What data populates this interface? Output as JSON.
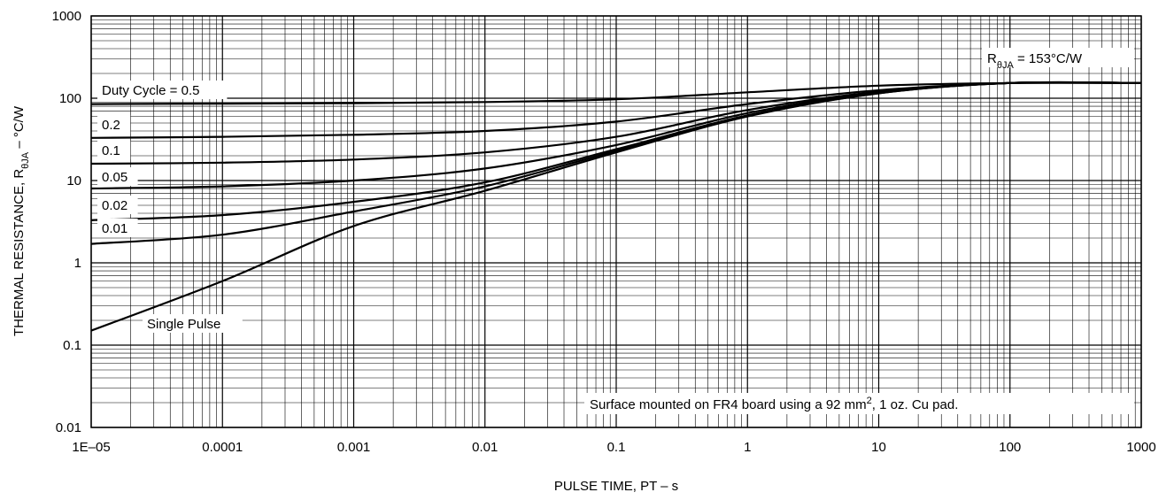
{
  "chart_data": {
    "type": "line",
    "x_scale": "log",
    "y_scale": "log",
    "xlim": [
      1e-05,
      1000
    ],
    "ylim": [
      0.01,
      1000
    ],
    "grid": true,
    "xlabel": "PULSE TIME, PT – s",
    "ylabel": {
      "prefix": "THERMAL RESISTANCE, R",
      "subscript": "θJA",
      "suffix": " – °C/W"
    },
    "x_tick_labels": [
      "1E–05",
      "0.0001",
      "0.001",
      "0.01",
      "0.1",
      "1",
      "10",
      "100",
      "1000"
    ],
    "y_tick_labels": [
      "0.01",
      "0.1",
      "1",
      "10",
      "100",
      "1000"
    ],
    "annotations": {
      "rthja": {
        "prefix": "R",
        "subscript": "θJA",
        "suffix": " = 153°C/W"
      },
      "board_note": {
        "prefix": "Surface mounted on FR4 board using a 92 mm",
        "superscript": "2",
        "suffix": ", 1 oz. Cu pad."
      }
    },
    "series": [
      {
        "label": "Duty Cycle = 0.5",
        "x": [
          1e-05,
          0.0001,
          0.001,
          0.01,
          0.1,
          1,
          10,
          100,
          1000
        ],
        "y": [
          85,
          86,
          87,
          90,
          97,
          118,
          142,
          153,
          153
        ]
      },
      {
        "label": "0.2",
        "x": [
          1e-05,
          0.0001,
          0.001,
          0.01,
          0.1,
          1,
          10,
          100,
          1000
        ],
        "y": [
          33,
          34,
          36,
          40,
          52,
          85,
          125,
          153,
          153
        ]
      },
      {
        "label": "0.1",
        "x": [
          1e-05,
          0.0001,
          0.001,
          0.01,
          0.1,
          1,
          10,
          100,
          1000
        ],
        "y": [
          16,
          16.5,
          18,
          22,
          34,
          72,
          120,
          153,
          153
        ]
      },
      {
        "label": "0.05",
        "x": [
          1e-05,
          0.0001,
          0.001,
          0.01,
          0.1,
          1,
          10,
          100,
          1000
        ],
        "y": [
          8,
          8.5,
          10,
          14,
          27,
          66,
          118,
          153,
          153
        ]
      },
      {
        "label": "0.02",
        "x": [
          1e-05,
          0.0001,
          0.001,
          0.01,
          0.1,
          1,
          10,
          100,
          1000
        ],
        "y": [
          3.3,
          3.8,
          5.5,
          9.5,
          24,
          62,
          116,
          153,
          153
        ]
      },
      {
        "label": "0.01",
        "x": [
          1e-05,
          0.0001,
          0.001,
          0.01,
          0.1,
          1,
          10,
          100,
          1000
        ],
        "y": [
          1.7,
          2.2,
          4.2,
          8.5,
          23,
          61,
          115,
          153,
          153
        ]
      },
      {
        "label": "Single Pulse",
        "x": [
          1e-05,
          0.0001,
          0.001,
          0.01,
          0.1,
          1,
          10,
          100,
          1000
        ],
        "y": [
          0.15,
          0.6,
          2.8,
          7.5,
          22,
          60,
          115,
          153,
          153
        ]
      }
    ]
  }
}
